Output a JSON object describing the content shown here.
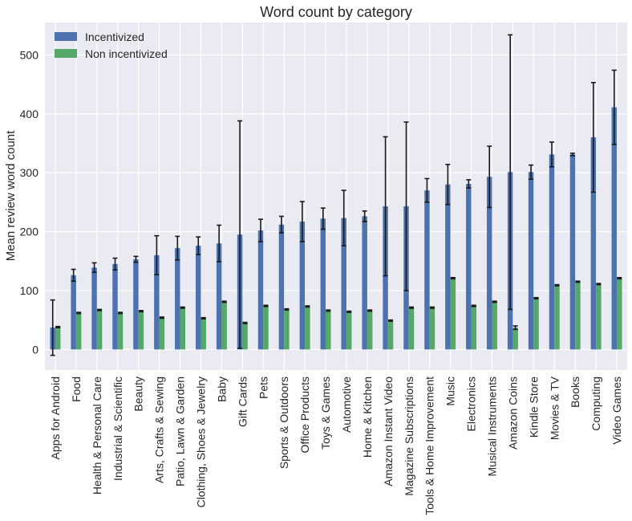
{
  "chart_data": {
    "type": "bar",
    "title": "Word count by category",
    "xlabel": "",
    "ylabel": "Mean review word count",
    "ylim": [
      -35,
      555
    ],
    "yticks": [
      0,
      100,
      200,
      300,
      400,
      500
    ],
    "grid": true,
    "legend_position": "top-left",
    "categories": [
      "Apps for Android",
      "Food",
      "Health & Personal Care",
      "Industrial & Scientific",
      "Beauty",
      "Arts, Crafts & Sewing",
      "Patio, Lawn & Garden",
      "Clothing, Shoes & Jewelry",
      "Baby",
      "Gift Cards",
      "Pets",
      "Sports & Outdoors",
      "Office Products",
      "Toys & Games",
      "Automotive",
      "Home & Kitchen",
      "Amazon Instant Video",
      "Magazine Subscriptions",
      "Tools & Home Improvement",
      "Music",
      "Electronics",
      "Musical Instruments",
      "Amazon Coins",
      "Kindle Store",
      "Movies & TV",
      "Books",
      "Computing",
      "Video Games"
    ],
    "series": [
      {
        "name": "Incentivized",
        "color": "#4c72b0",
        "values": [
          37,
          126,
          139,
          145,
          153,
          160,
          172,
          176,
          180,
          195,
          202,
          212,
          217,
          222,
          223,
          226,
          243,
          243,
          270,
          280,
          281,
          293,
          301,
          301,
          331,
          331,
          360,
          411
        ],
        "error": [
          47,
          10,
          8,
          10,
          5,
          33,
          20,
          15,
          31,
          193,
          19,
          14,
          34,
          18,
          47,
          9,
          118,
          143,
          20,
          34,
          7,
          52,
          233,
          12,
          21,
          2,
          93,
          63
        ]
      },
      {
        "name": "Non incentivized",
        "color": "#55a868",
        "values": [
          38,
          62,
          67,
          62,
          65,
          54,
          71,
          53,
          81,
          45,
          74,
          68,
          73,
          66,
          64,
          66,
          49,
          71,
          71,
          121,
          74,
          81,
          37,
          87,
          109,
          115,
          111,
          121
        ],
        "error": [
          1,
          1,
          1,
          1,
          1,
          1,
          1,
          1,
          1,
          1,
          1,
          1,
          1,
          1,
          1,
          1,
          1,
          1,
          1,
          1,
          1,
          1,
          3,
          1,
          1,
          1,
          1,
          1
        ]
      }
    ]
  }
}
